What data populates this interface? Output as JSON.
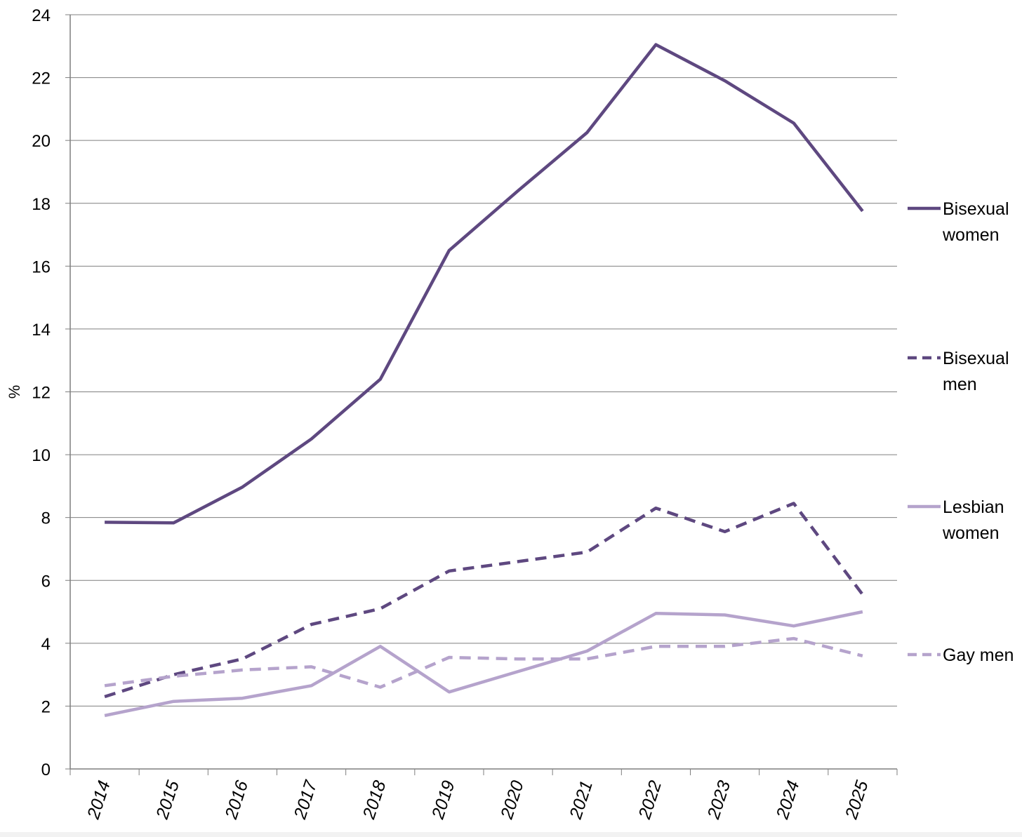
{
  "chart_data": {
    "type": "line",
    "ylabel": "%",
    "xlabel": "",
    "title": "",
    "ylim": [
      0,
      24
    ],
    "yticks": [
      0,
      2,
      4,
      6,
      8,
      10,
      12,
      14,
      16,
      18,
      20,
      22,
      24
    ],
    "categories": [
      "2014",
      "2015",
      "2016",
      "2017",
      "2018",
      "2019",
      "2020",
      "2021",
      "2022",
      "2023",
      "2024",
      "2025"
    ],
    "grid": true,
    "legend_position": "right",
    "series": [
      {
        "name": "Bisexual\nwomen",
        "color": "#5e4880",
        "dash": "solid",
        "values": [
          7.85,
          7.83,
          8.97,
          10.5,
          12.4,
          16.5,
          18.4,
          20.25,
          23.05,
          21.9,
          20.55,
          17.75
        ]
      },
      {
        "name": "Bisexual\nmen",
        "color": "#5e4880",
        "dash": "dashed",
        "values": [
          2.3,
          3.0,
          3.5,
          4.6,
          5.1,
          6.3,
          6.6,
          6.9,
          8.3,
          7.55,
          8.45,
          5.55
        ]
      },
      {
        "name": "Lesbian\nwomen",
        "color": "#b5a3cc",
        "dash": "solid",
        "values": [
          1.7,
          2.15,
          2.25,
          2.65,
          3.9,
          2.45,
          3.1,
          3.75,
          4.95,
          4.9,
          4.55,
          5.0
        ]
      },
      {
        "name": "Gay men",
        "color": "#b5a3cc",
        "dash": "dashed",
        "values": [
          2.65,
          2.95,
          3.15,
          3.25,
          2.6,
          3.55,
          3.5,
          3.5,
          3.9,
          3.9,
          4.15,
          3.6
        ]
      }
    ]
  }
}
